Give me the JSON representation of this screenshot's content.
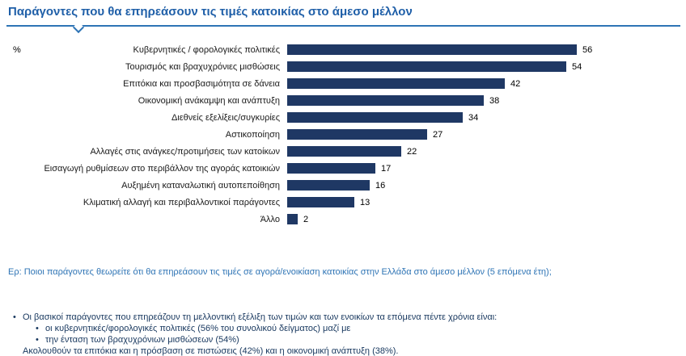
{
  "header": {
    "title": "Παράγοντες που θα επηρεάσουν τις τιμές κατοικίας στο άμεσο μέλλον",
    "title_color": "#1F5FA8",
    "rule_color": "#2E74B5"
  },
  "percent_label": "%",
  "chart_data": {
    "type": "bar",
    "orientation": "horizontal",
    "title": "Παράγοντες που θα επηρεάσουν τις τιμές κατοικίας στο άμεσο μέλλον",
    "xlabel": "%",
    "ylabel": "",
    "xlim": [
      0,
      60
    ],
    "grid": false,
    "bar_color": "#1F3864",
    "categories": [
      "Κυβερνητικές / φορολογικές πολιτικές",
      "Τουρισμός και βραχυχρόνιες μισθώσεις",
      "Επιτόκια και προσβασιμότητα σε δάνεια",
      "Οικονομική ανάκαμψη και ανάπτυξη",
      "Διεθνείς εξελίξεις/συγκυρίες",
      "Αστικοποίηση",
      "Αλλαγές στις ανάγκες/προτιμήσεις των κατοίκων",
      "Εισαγωγή ρυθμίσεων στο περιβάλλον της αγοράς κατοικιών",
      "Αυξημένη καταναλωτική αυτοπεποίθηση",
      "Κλιματική αλλαγή και περιβαλλοντικοί παράγοντες",
      "Άλλο"
    ],
    "values": [
      56,
      54,
      42,
      38,
      34,
      27,
      22,
      17,
      16,
      13,
      2
    ]
  },
  "question": "Ερ: Ποιοι παράγοντες θεωρείτε ότι θα επηρεάσουν τις τιμές σε αγορά/ενοικίαση κατοικίας στην Ελλάδα στο άμεσο μέλλον (5 επόμενα έτη);",
  "notes": [
    {
      "level": 1,
      "bullet": true,
      "text": "Οι βασικοί παράγοντες που επηρεάζουν τη μελλοντική εξέλιξη των τιμών και των ενοικίων τα επόμενα πέντε χρόνια είναι:"
    },
    {
      "level": 2,
      "bullet": true,
      "text": "οι κυβερνητικές/φορολογικές πολιτικές (56% του συνολικού δείγματος) μαζί με"
    },
    {
      "level": 2,
      "bullet": true,
      "text": "την ένταση των βραχυχρόνιων μισθώσεων (54%)"
    },
    {
      "level": 1,
      "bullet": false,
      "text": "Ακολουθούν τα επιτόκια και η πρόσβαση σε πιστώσεις (42%) και η οικονομική ανάπτυξη (38%)."
    }
  ]
}
